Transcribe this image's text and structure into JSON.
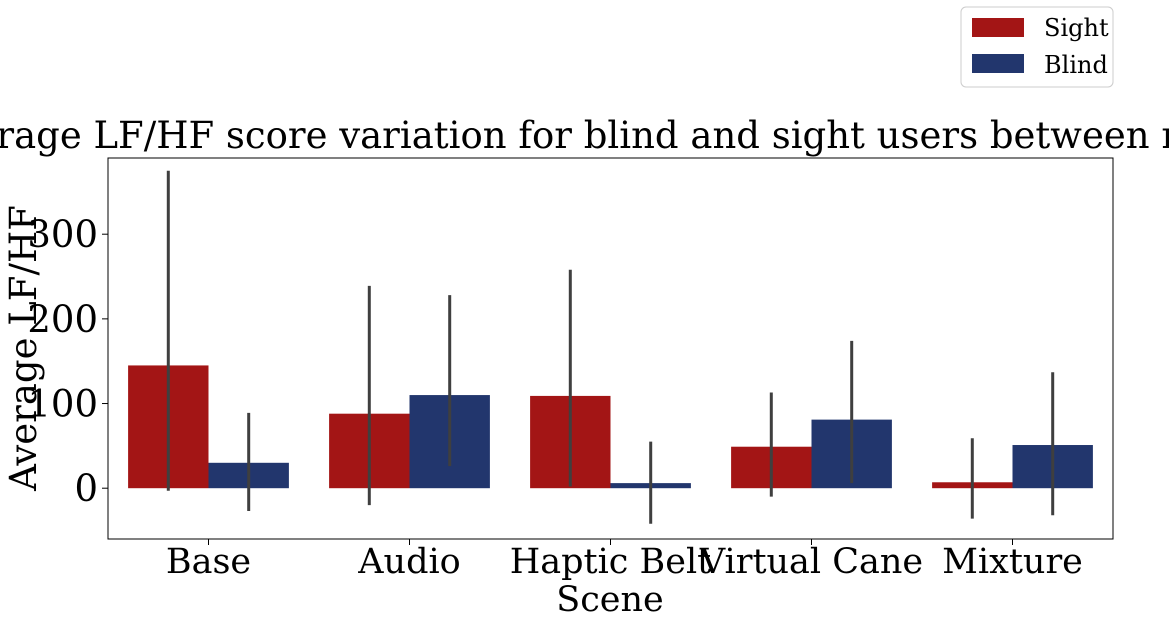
{
  "chart_data": {
    "type": "bar",
    "title": "Average LF/HF score variation for blind and sight users between rounds",
    "xlabel": "Scene",
    "ylabel": "Average LF/HF",
    "categories": [
      "Base",
      "Audio",
      "Haptic Belt",
      "Virtual Cane",
      "Mixture"
    ],
    "ylim": [
      -60,
      390
    ],
    "yticks": [
      0,
      100,
      200,
      300
    ],
    "grid": false,
    "legend_position": "top-right",
    "series": [
      {
        "name": "Sight",
        "color": "#a31515",
        "values": [
          145,
          88,
          109,
          49,
          7
        ],
        "ci_low": [
          -3,
          -20,
          2,
          -10,
          -36
        ],
        "ci_high": [
          375,
          239,
          258,
          113,
          59
        ]
      },
      {
        "name": "Blind",
        "color": "#22366d",
        "values": [
          30,
          110,
          6,
          81,
          51
        ],
        "ci_low": [
          -27,
          26,
          -42,
          6,
          -32
        ],
        "ci_high": [
          89,
          228,
          55,
          174,
          137
        ]
      }
    ],
    "error_bar_color": "#3f3f3f"
  }
}
